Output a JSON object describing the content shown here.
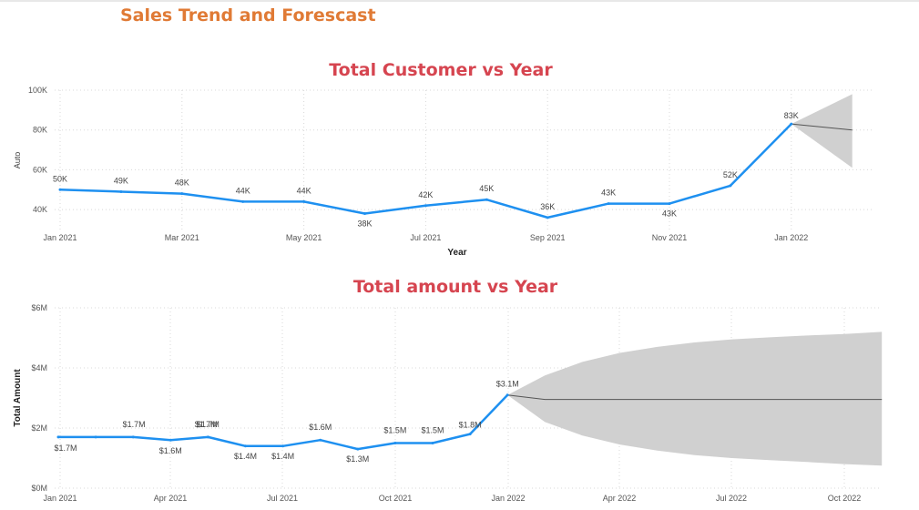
{
  "page": {
    "title": "Sales Trend and Forescast"
  },
  "chart_data": [
    {
      "type": "line",
      "title": "Total Customer vs Year",
      "xlabel": "Year",
      "ylabel": "Auto",
      "ylim": [
        30000,
        100000
      ],
      "yticks": [
        40000,
        60000,
        80000,
        100000
      ],
      "ytick_labels": [
        "40K",
        "60K",
        "80K",
        "100K"
      ],
      "xtick_labels": [
        "Jan 2021",
        "Mar 2021",
        "May 2021",
        "Jul 2021",
        "Sep 2021",
        "Nov 2021",
        "Jan 2022"
      ],
      "grid": true,
      "series": [
        {
          "x": [
            "2021-01",
            "2021-02",
            "2021-03",
            "2021-04",
            "2021-05",
            "2021-06",
            "2021-07",
            "2021-08",
            "2021-09",
            "2021-10",
            "2021-11",
            "2021-12",
            "2022-01"
          ],
          "values": [
            50000,
            49000,
            48000,
            44000,
            44000,
            38000,
            42000,
            45000,
            36000,
            43000,
            43000,
            52000,
            83000
          ],
          "labels": [
            "50K",
            "49K",
            "48K",
            "44K",
            "44K",
            "38K",
            "42K",
            "45K",
            "36K",
            "43K",
            "43K",
            "52K",
            "83K"
          ],
          "color": "#1e90f0"
        }
      ],
      "forecast": {
        "x": [
          "2022-01",
          "2022-02"
        ],
        "values": [
          83000,
          80000
        ],
        "upper": [
          83000,
          98000
        ],
        "lower": [
          83000,
          61000
        ],
        "line_color": "#555555",
        "band_color": "#d0d0d0"
      }
    },
    {
      "type": "line",
      "title": "Total amount vs Year",
      "xlabel": "Year",
      "ylabel": "Total Amount",
      "ylim": [
        0,
        6000000
      ],
      "yticks": [
        0,
        2000000,
        4000000,
        6000000
      ],
      "ytick_labels": [
        "$0M",
        "$2M",
        "$4M",
        "$6M"
      ],
      "xtick_labels": [
        "Jan 2021",
        "Apr 2021",
        "Jul 2021",
        "Oct 2021",
        "Jan 2022",
        "Apr 2022",
        "Jul 2022",
        "Oct 2022"
      ],
      "grid": true,
      "series": [
        {
          "x": [
            "2021-01",
            "2021-02",
            "2021-03",
            "2021-04",
            "2021-05",
            "2021-06",
            "2021-07",
            "2021-08",
            "2021-09",
            "2021-10",
            "2021-11",
            "2021-12",
            "2022-01"
          ],
          "values": [
            1700000,
            1700000,
            1700000,
            1600000,
            1700000,
            1400000,
            1400000,
            1600000,
            1300000,
            1500000,
            1500000,
            1800000,
            3100000
          ],
          "labels": [
            "$1.7M",
            "$1.7M",
            "$1.7M",
            "$1.6M",
            "$1.7M",
            "$1.4M",
            "$1.4M",
            "$1.6M",
            "$1.3M",
            "$1.5M",
            "$1.5M",
            "$1.8M",
            "$3.1M"
          ],
          "color": "#1e90f0"
        }
      ],
      "forecast": {
        "x": [
          "2022-01",
          "2022-02",
          "2022-03",
          "2022-04",
          "2022-05",
          "2022-06",
          "2022-07",
          "2022-08",
          "2022-09",
          "2022-10",
          "2022-11"
        ],
        "values": [
          3100000,
          2950000,
          2950000,
          2950000,
          2950000,
          2950000,
          2950000,
          2950000,
          2950000,
          2950000,
          2950000
        ],
        "upper": [
          3100000,
          3750000,
          4200000,
          4500000,
          4700000,
          4850000,
          4950000,
          5020000,
          5080000,
          5130000,
          5200000
        ],
        "lower": [
          3100000,
          2200000,
          1750000,
          1450000,
          1250000,
          1100000,
          1000000,
          930000,
          870000,
          800000,
          750000
        ],
        "line_color": "#555555",
        "band_color": "#d0d0d0"
      }
    }
  ]
}
